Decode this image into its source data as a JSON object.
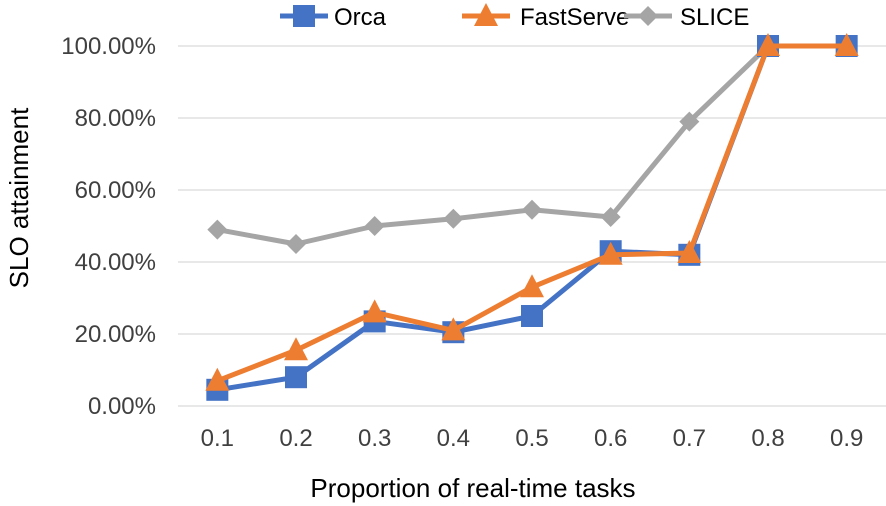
{
  "chart_data": {
    "type": "line",
    "title": "",
    "xlabel": "Proportion of real-time tasks",
    "ylabel": "SLO attainment",
    "categories": [
      "0.1",
      "0.2",
      "0.3",
      "0.4",
      "0.5",
      "0.6",
      "0.7",
      "0.8",
      "0.9"
    ],
    "ylim": [
      0,
      100
    ],
    "yticks": [
      0,
      20,
      40,
      60,
      80,
      100
    ],
    "ytick_labels": [
      "0.00%",
      "20.00%",
      "40.00%",
      "60.00%",
      "80.00%",
      "100.00%"
    ],
    "grid": true,
    "legend_position": "top",
    "series": [
      {
        "name": "Orca",
        "marker": "square",
        "color": "#4472C4",
        "values": [
          4.5,
          8.0,
          23.5,
          20.5,
          25.0,
          43.0,
          42.0,
          100.0,
          100.0
        ]
      },
      {
        "name": "FastServe",
        "marker": "triangle",
        "color": "#ED7D31",
        "values": [
          7.0,
          15.5,
          26.0,
          21.0,
          33.0,
          42.0,
          42.5,
          100.0,
          100.0
        ]
      },
      {
        "name": "SLICE",
        "marker": "diamond",
        "color": "#A5A5A5",
        "values": [
          49.0,
          45.0,
          50.0,
          52.0,
          54.5,
          52.5,
          79.0,
          100.0,
          100.0
        ]
      }
    ]
  }
}
